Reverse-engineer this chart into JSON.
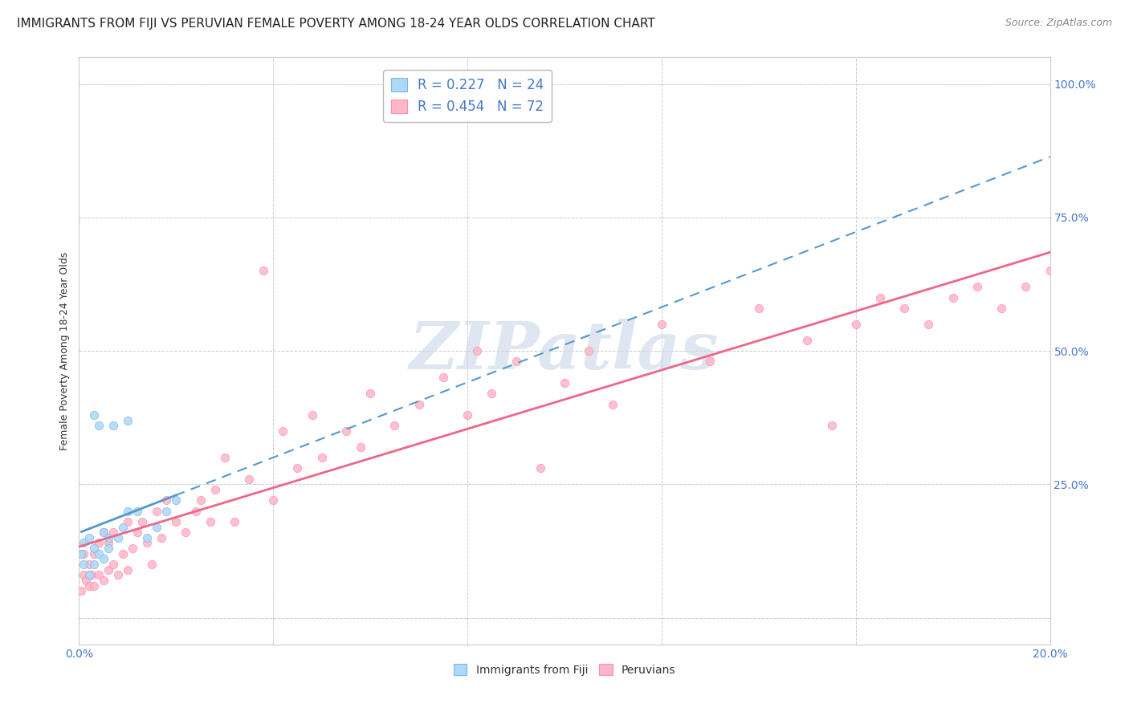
{
  "title": "IMMIGRANTS FROM FIJI VS PERUVIAN FEMALE POVERTY AMONG 18-24 YEAR OLDS CORRELATION CHART",
  "source": "Source: ZipAtlas.com",
  "ylabel": "Female Poverty Among 18-24 Year Olds",
  "xlim": [
    0.0,
    0.2
  ],
  "ylim": [
    -0.05,
    1.05
  ],
  "fiji_R": 0.227,
  "fiji_N": 24,
  "peru_R": 0.454,
  "peru_N": 72,
  "fiji_color": "#ADD8F7",
  "peru_color": "#FFB6C8",
  "fiji_edge": "#7BB8E8",
  "peru_edge": "#FF8FAD",
  "fiji_marker_size": 55,
  "peru_marker_size": 55,
  "fiji_x": [
    0.0005,
    0.001,
    0.001,
    0.002,
    0.002,
    0.003,
    0.003,
    0.003,
    0.004,
    0.004,
    0.005,
    0.005,
    0.006,
    0.006,
    0.007,
    0.008,
    0.009,
    0.01,
    0.01,
    0.012,
    0.014,
    0.016,
    0.018,
    0.02
  ],
  "fiji_y": [
    0.12,
    0.1,
    0.14,
    0.08,
    0.15,
    0.1,
    0.13,
    0.38,
    0.12,
    0.36,
    0.11,
    0.16,
    0.13,
    0.15,
    0.36,
    0.15,
    0.17,
    0.2,
    0.37,
    0.2,
    0.15,
    0.17,
    0.2,
    0.22
  ],
  "peru_x": [
    0.0005,
    0.001,
    0.001,
    0.0015,
    0.002,
    0.002,
    0.0025,
    0.003,
    0.003,
    0.004,
    0.004,
    0.005,
    0.005,
    0.006,
    0.006,
    0.007,
    0.007,
    0.008,
    0.009,
    0.01,
    0.01,
    0.011,
    0.012,
    0.013,
    0.014,
    0.015,
    0.016,
    0.017,
    0.018,
    0.02,
    0.022,
    0.024,
    0.025,
    0.027,
    0.028,
    0.03,
    0.032,
    0.035,
    0.038,
    0.04,
    0.042,
    0.045,
    0.048,
    0.05,
    0.055,
    0.058,
    0.06,
    0.065,
    0.07,
    0.075,
    0.08,
    0.082,
    0.085,
    0.09,
    0.095,
    0.1,
    0.105,
    0.11,
    0.12,
    0.13,
    0.14,
    0.15,
    0.155,
    0.16,
    0.165,
    0.17,
    0.175,
    0.18,
    0.185,
    0.19,
    0.195,
    0.2
  ],
  "peru_y": [
    0.05,
    0.08,
    0.12,
    0.07,
    0.06,
    0.1,
    0.08,
    0.06,
    0.12,
    0.08,
    0.14,
    0.07,
    0.16,
    0.09,
    0.14,
    0.1,
    0.16,
    0.08,
    0.12,
    0.09,
    0.18,
    0.13,
    0.16,
    0.18,
    0.14,
    0.1,
    0.2,
    0.15,
    0.22,
    0.18,
    0.16,
    0.2,
    0.22,
    0.18,
    0.24,
    0.3,
    0.18,
    0.26,
    0.65,
    0.22,
    0.35,
    0.28,
    0.38,
    0.3,
    0.35,
    0.32,
    0.42,
    0.36,
    0.4,
    0.45,
    0.38,
    0.5,
    0.42,
    0.48,
    0.28,
    0.44,
    0.5,
    0.4,
    0.55,
    0.48,
    0.58,
    0.52,
    0.36,
    0.55,
    0.6,
    0.58,
    0.55,
    0.6,
    0.62,
    0.58,
    0.62,
    0.65
  ],
  "watermark": "ZIPatlas",
  "watermark_color": "#C8D8E8",
  "background_color": "#FFFFFF",
  "grid_color": "#CCCCCC",
  "legend_fiji_label": "R = 0.227   N = 24",
  "legend_peru_label": "R = 0.454   N = 72",
  "fiji_line_color": "#5599CC",
  "peru_line_color": "#EE6688",
  "title_fontsize": 11,
  "axis_label_fontsize": 9,
  "tick_fontsize": 10,
  "source_fontsize": 9,
  "tick_color": "#4477CC"
}
